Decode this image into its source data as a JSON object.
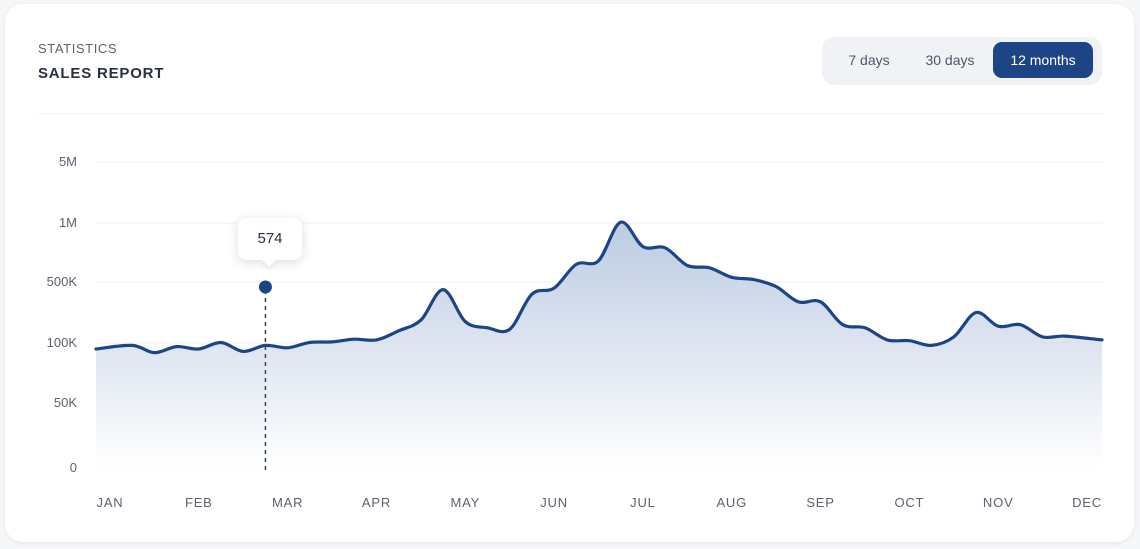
{
  "header": {
    "eyebrow": "STATISTICS",
    "title": "SALES REPORT"
  },
  "range_selector": {
    "options": [
      "7 days",
      "30 days",
      "12 months"
    ],
    "selected": "12 months"
  },
  "colors": {
    "accent": "#1d4586",
    "area_top": "#c2cfe4"
  },
  "chart_data": {
    "type": "area",
    "y_scale": "custom-ticked",
    "y_ticks": [
      {
        "label": "0",
        "value": 0
      },
      {
        "label": "50K",
        "value": 50000
      },
      {
        "label": "100K",
        "value": 100000
      },
      {
        "label": "500K",
        "value": 500000
      },
      {
        "label": "1M",
        "value": 1000000
      },
      {
        "label": "5M",
        "value": 5000000
      }
    ],
    "x_ticks": [
      "JAN",
      "FEB",
      "MAR",
      "APR",
      "MAY",
      "JUN",
      "JUL",
      "AUG",
      "SEP",
      "OCT",
      "NOV",
      "DEC"
    ],
    "x": [
      0,
      0.25,
      0.5,
      0.75,
      1,
      1.25,
      1.5,
      1.75,
      2,
      2.25,
      2.5,
      2.75,
      3,
      3.25,
      3.5,
      3.75,
      4,
      4.25,
      4.5,
      4.75,
      5,
      5.25,
      5.5,
      5.75,
      6,
      6.25,
      6.5,
      6.75,
      7,
      7.25,
      7.5,
      7.75,
      8,
      8.25,
      8.5,
      8.75,
      9,
      9.25,
      9.5,
      9.75,
      10,
      10.25,
      10.5,
      10.75,
      11
    ],
    "y": [
      95000,
      98000,
      92000,
      97000,
      95000,
      103000,
      93000,
      98000,
      96000,
      104000,
      107000,
      125000,
      120000,
      180000,
      250000,
      450000,
      240000,
      200000,
      190000,
      420000,
      460000,
      650000,
      680000,
      1050000,
      800000,
      790000,
      640000,
      620000,
      540000,
      520000,
      470000,
      370000,
      370000,
      220000,
      200000,
      120000,
      115000,
      98000,
      140000,
      300000,
      210000,
      220000,
      140000,
      145000,
      120000
    ],
    "highlight": {
      "x": 1.75,
      "label": "574"
    },
    "grid": true,
    "legend": "none"
  }
}
